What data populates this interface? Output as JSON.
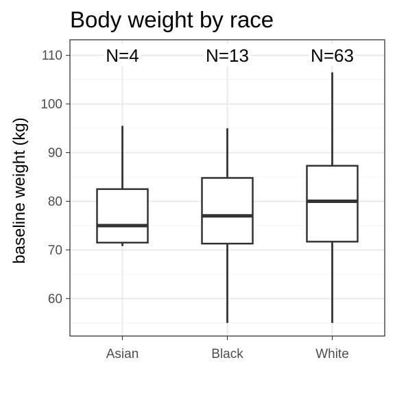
{
  "chart_data": {
    "type": "boxplot",
    "title": "Body weight by race",
    "xlabel": "",
    "ylabel": "baseline weight (kg)",
    "categories": [
      "Asian",
      "Black",
      "White"
    ],
    "ylim": [
      52.3,
      113.2
    ],
    "y_ticks": [
      60,
      70,
      80,
      90,
      100,
      110
    ],
    "y_tick_labels": [
      "60",
      "70",
      "80",
      "90",
      "100",
      "110"
    ],
    "grid": true,
    "boxes": [
      {
        "category": "Asian",
        "n_label": "N=4",
        "min": 70.8,
        "q1": 71.5,
        "median": 75.0,
        "q3": 82.5,
        "max": 95.5
      },
      {
        "category": "Black",
        "n_label": "N=13",
        "min": 55.0,
        "q1": 71.3,
        "median": 77.0,
        "q3": 84.8,
        "max": 95.0
      },
      {
        "category": "White",
        "n_label": "N=63",
        "min": 55.0,
        "q1": 71.7,
        "median": 80.0,
        "q3": 87.3,
        "max": 106.5
      }
    ],
    "colors": {
      "box_fill": "#ffffff",
      "box_stroke": "#333333",
      "grid_major": "#ebebeb",
      "grid_minor": "#f5f5f5",
      "panel_border": "#333333"
    }
  }
}
